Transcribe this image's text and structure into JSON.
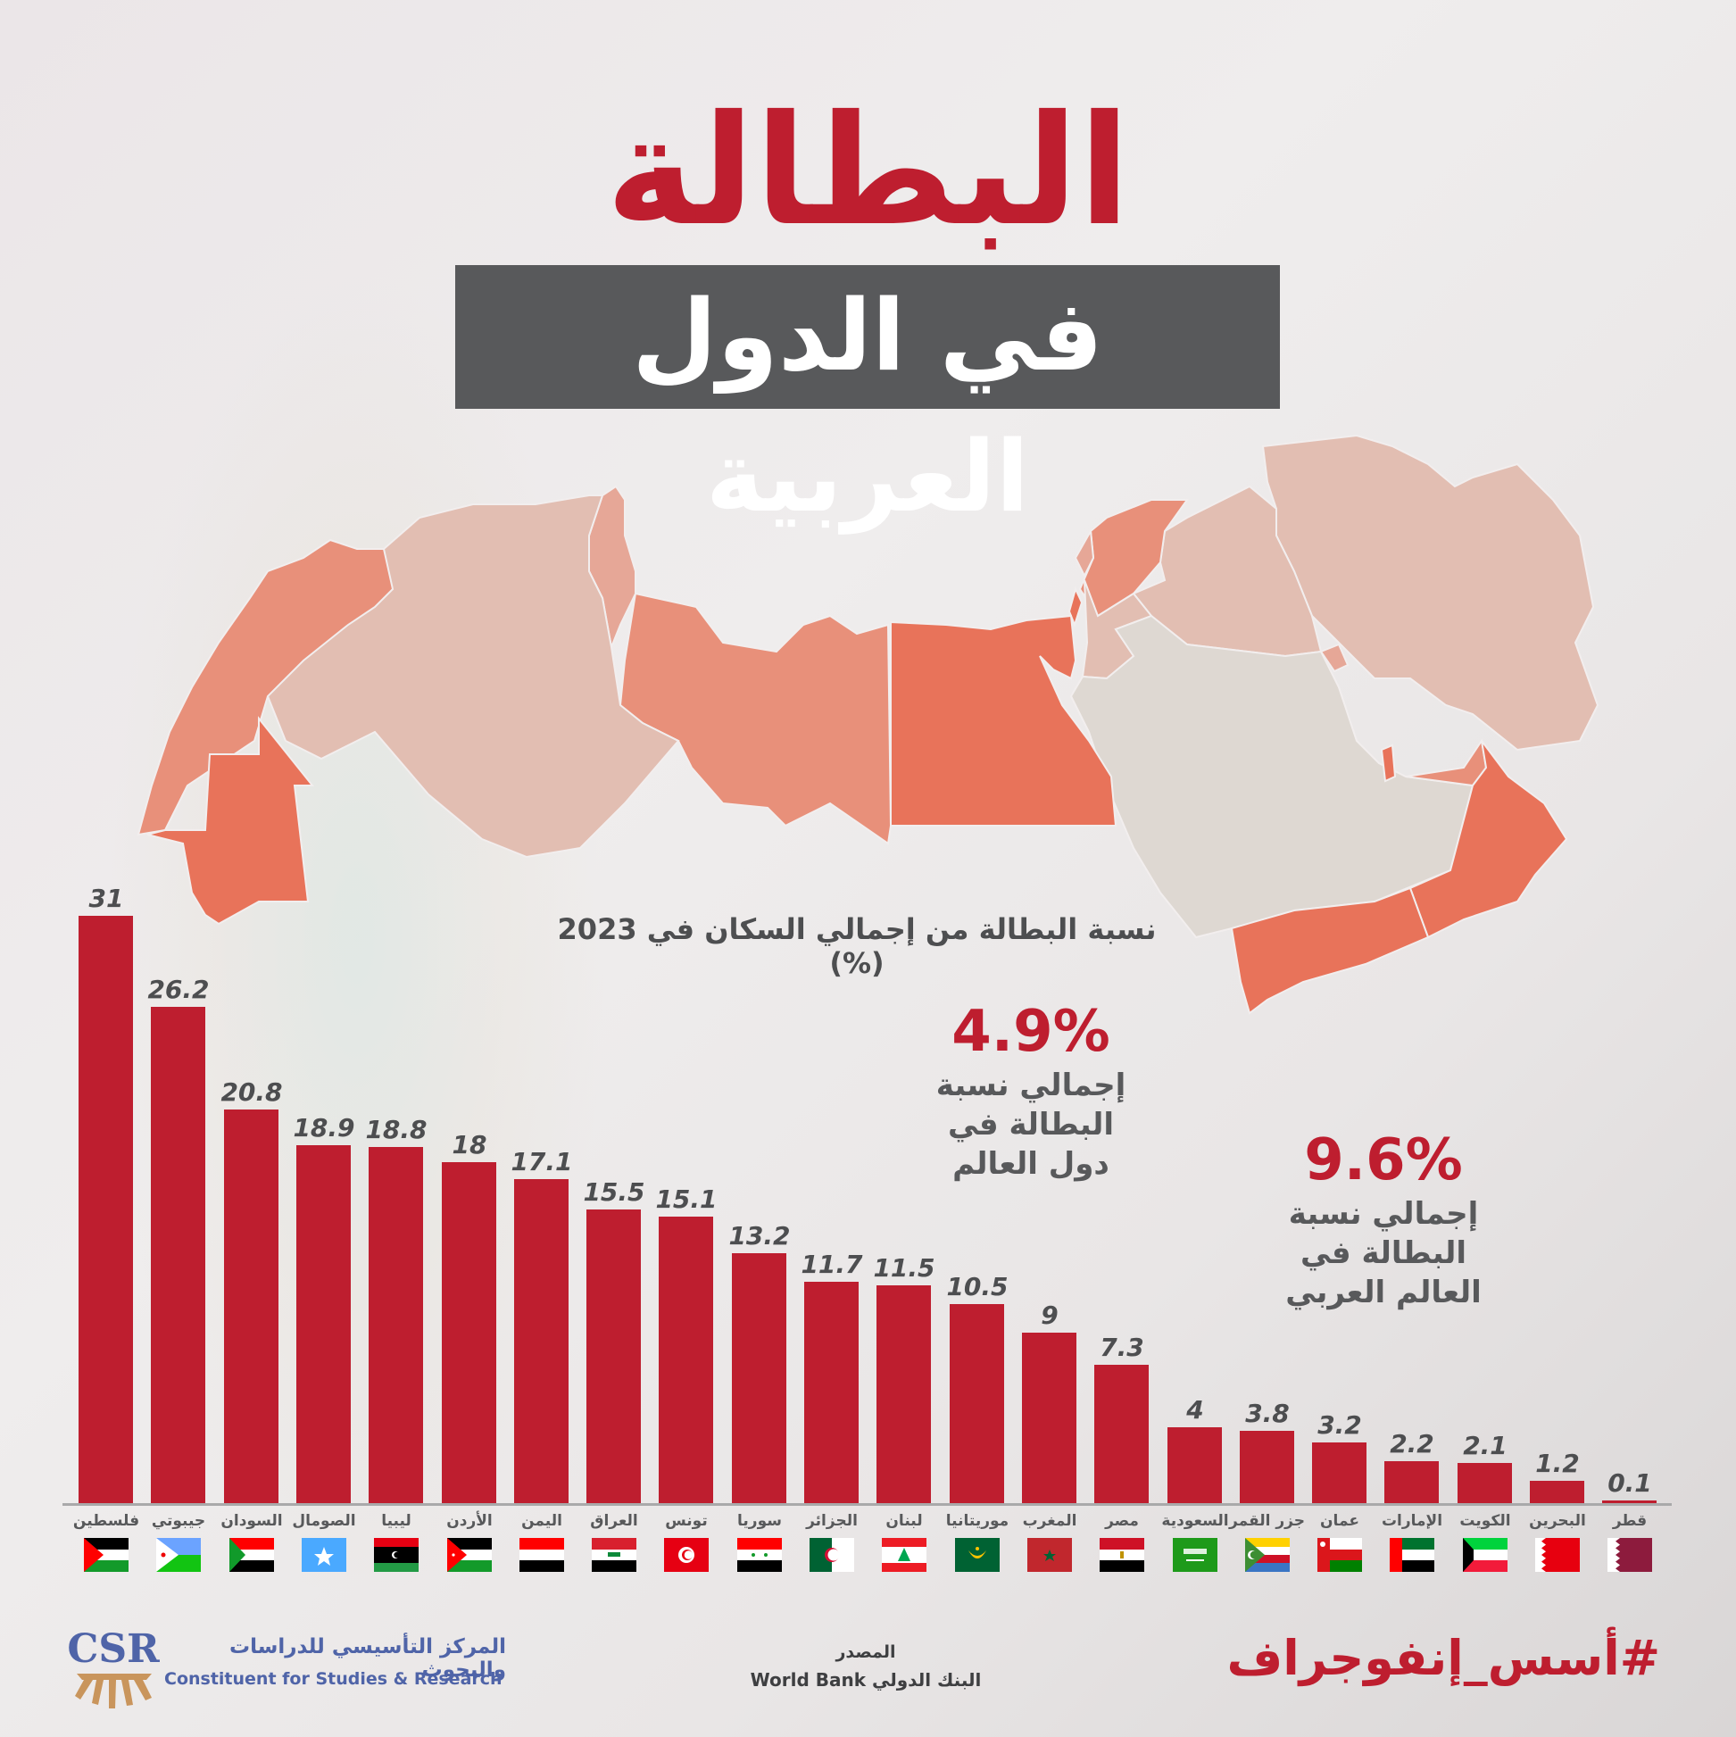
{
  "header": {
    "title": "البطالة",
    "subtitle": "في الدول العربية"
  },
  "chart_title": "نسبة البطالة من إجمالي السكان في 2023 (%)",
  "stats": {
    "world": {
      "value": "4.9%",
      "label_lines": [
        "إجمالي نسبة",
        "البطالة في",
        "دول العالم"
      ]
    },
    "arab": {
      "value": "9.6%",
      "label_lines": [
        "إجمالي نسبة",
        "البطالة في",
        "العالم العربي"
      ]
    }
  },
  "colors": {
    "bar": "#be1e2f",
    "title_red": "#be1e2f",
    "title_box": "#58595b",
    "text_gray": "#4d4e50",
    "map_dark": "#e8735a",
    "map_mid": "#e8907a",
    "map_light": "#e6a797",
    "map_pale": "#e2beb2",
    "map_neutral": "#ded8d2",
    "logo_blue": "#4f64a8",
    "logo_gold": "#c9955c"
  },
  "chart_data": {
    "type": "bar",
    "title": "نسبة البطالة من إجمالي السكان في 2023 (%)",
    "xlabel": "",
    "ylabel": "%",
    "ylim": [
      0,
      31
    ],
    "grid": false,
    "legend": null,
    "categories": [
      "فلسطين",
      "جيبوتي",
      "السودان",
      "الصومال",
      "ليبيا",
      "الأردن",
      "اليمن",
      "العراق",
      "تونس",
      "سوريا",
      "الجزائر",
      "لبنان",
      "موريتانيا",
      "المغرب",
      "مصر",
      "السعودية",
      "جزر القمر",
      "عمان",
      "الإمارات",
      "الكويت",
      "البحرين",
      "قطر"
    ],
    "values": [
      31,
      26.2,
      20.8,
      18.9,
      18.8,
      18,
      17.1,
      15.5,
      15.1,
      13.2,
      11.7,
      11.5,
      10.5,
      9,
      7.3,
      4,
      3.8,
      3.2,
      2.2,
      2.1,
      1.2,
      0.1
    ],
    "value_labels": [
      "31",
      "26.2",
      "20.8",
      "18.9",
      "18.8",
      "18",
      "17.1",
      "15.5",
      "15.1",
      "13.2",
      "11.7",
      "11.5",
      "10.5",
      "9",
      "7.3",
      "4",
      "3.8",
      "3.2",
      "2.2",
      "2.1",
      "1.2",
      "0.1"
    ],
    "annotations": [
      {
        "text": "4.9%",
        "description": "إجمالي نسبة البطالة في دول العالم"
      },
      {
        "text": "9.6%",
        "description": "إجمالي نسبة البطالة في العالم العربي"
      }
    ]
  },
  "flags": [
    "palestine-flag",
    "djibouti-flag",
    "sudan-flag",
    "somalia-flag",
    "libya-flag",
    "jordan-flag",
    "yemen-flag",
    "iraq-flag",
    "tunisia-flag",
    "syria-flag",
    "algeria-flag",
    "lebanon-flag",
    "mauritania-flag",
    "morocco-flag",
    "egypt-flag",
    "saudi-flag",
    "comoros-flag",
    "oman-flag",
    "uae-flag",
    "kuwait-flag",
    "bahrain-flag",
    "qatar-flag"
  ],
  "footer": {
    "logo_abbr": "CSR",
    "org_name_ar": "المركز التأسيسي للدراسات والبحوث",
    "org_name_en": "Constituent for Studies & Research",
    "source_label": "المصدر",
    "source_value": "البنك الدولي World Bank",
    "hashtag": "#أسس_إنفوجراف"
  }
}
